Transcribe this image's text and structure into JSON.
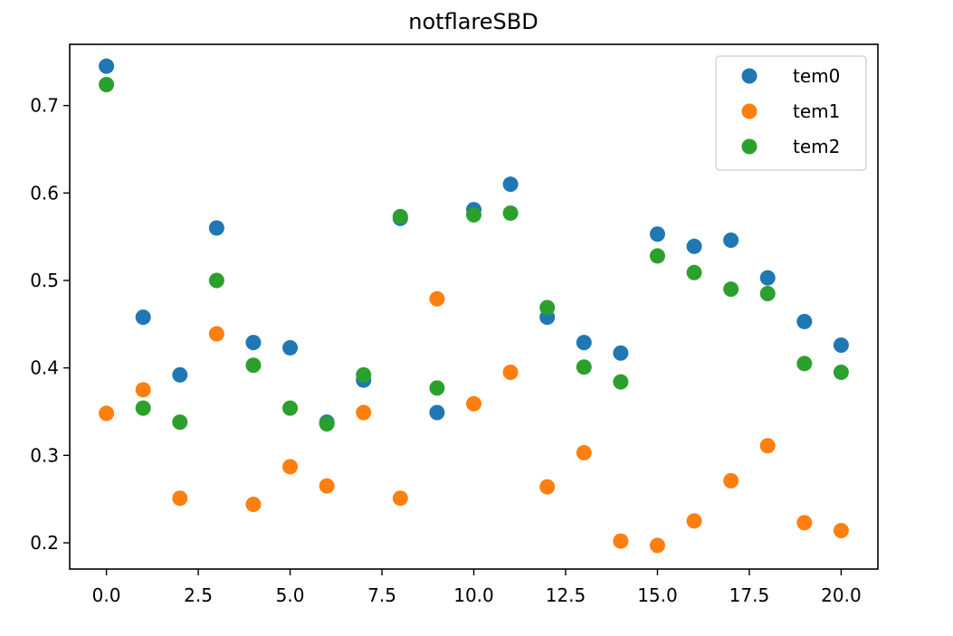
{
  "chart_data": {
    "type": "scatter",
    "title": "notflareSBD",
    "xlabel": "",
    "ylabel": "",
    "xlim": [
      -1.0,
      21.0
    ],
    "ylim": [
      0.17,
      0.77
    ],
    "xticks": [
      0.0,
      2.5,
      5.0,
      7.5,
      10.0,
      12.5,
      15.0,
      17.5,
      20.0
    ],
    "xtick_labels": [
      "0.0",
      "2.5",
      "5.0",
      "7.5",
      "10.0",
      "12.5",
      "15.0",
      "17.5",
      "20.0"
    ],
    "yticks": [
      0.2,
      0.3,
      0.4,
      0.5,
      0.6,
      0.7
    ],
    "ytick_labels": [
      "0.2",
      "0.3",
      "0.4",
      "0.5",
      "0.6",
      "0.7"
    ],
    "grid": false,
    "legend_position": "top-right",
    "x": [
      0,
      1,
      2,
      3,
      4,
      5,
      6,
      7,
      8,
      9,
      10,
      11,
      12,
      13,
      14,
      15,
      16,
      17,
      18,
      19,
      20
    ],
    "series": [
      {
        "name": "tem0",
        "color": "#1f77b4",
        "values": [
          0.745,
          0.458,
          0.392,
          0.56,
          0.429,
          0.423,
          0.338,
          0.386,
          0.571,
          0.349,
          0.581,
          0.61,
          0.458,
          0.429,
          0.417,
          0.553,
          0.539,
          0.546,
          0.503,
          0.453,
          0.426
        ]
      },
      {
        "name": "tem1",
        "color": "#ff7f0e",
        "values": [
          0.348,
          0.375,
          0.251,
          0.439,
          0.244,
          0.287,
          0.265,
          0.349,
          0.251,
          0.479,
          0.359,
          0.395,
          0.264,
          0.303,
          0.202,
          0.197,
          0.225,
          0.271,
          0.311,
          0.223,
          0.214
        ]
      },
      {
        "name": "tem2",
        "color": "#2ca02c",
        "values": [
          0.724,
          0.354,
          0.338,
          0.5,
          0.403,
          0.354,
          0.336,
          0.392,
          0.573,
          0.377,
          0.575,
          0.577,
          0.469,
          0.401,
          0.384,
          0.528,
          0.509,
          0.49,
          0.485,
          0.405,
          0.395
        ]
      }
    ]
  }
}
